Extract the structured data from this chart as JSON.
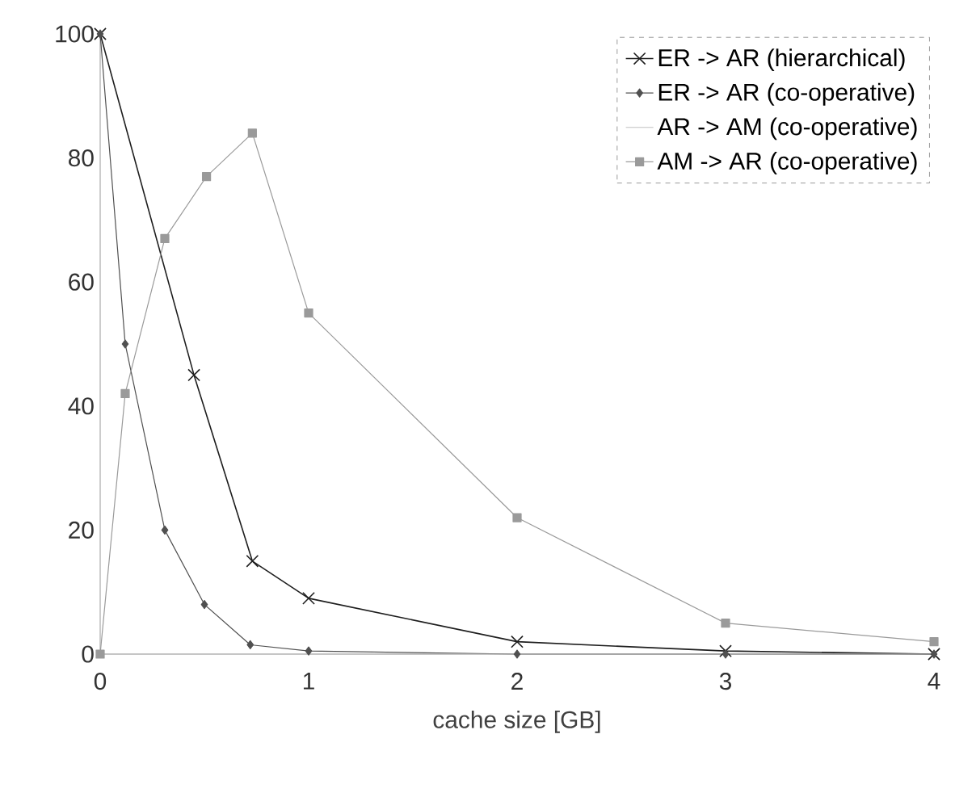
{
  "chart_data": {
    "type": "line",
    "xlabel": "cache size [GB]",
    "xlim": [
      0,
      4
    ],
    "xticks": [
      0,
      1,
      2,
      3,
      4
    ],
    "ylim": [
      0,
      100
    ],
    "yticks": [
      0,
      20,
      40,
      60,
      80,
      100
    ],
    "grid": false,
    "legend": "top right",
    "series": [
      {
        "name": "ER -> AR (hierarchical)",
        "color": "#1e1e1e",
        "marker": "cross",
        "x": [
          0,
          0.45,
          0.73,
          1,
          2,
          3,
          4
        ],
        "values": [
          100,
          45,
          15,
          9,
          2,
          0.5,
          0
        ]
      },
      {
        "name": "ER -> AR (co-operative)",
        "color": "#505050",
        "marker": "diamond",
        "x": [
          0,
          0.12,
          0.31,
          0.5,
          0.72,
          1,
          2,
          3,
          4
        ],
        "values": [
          100,
          50,
          20,
          8,
          1.5,
          0.5,
          0,
          0,
          0
        ]
      },
      {
        "name": "AR -> AM (co-operative)",
        "color": "#c0c0c0",
        "marker": "none",
        "x": [
          0,
          1,
          2,
          3,
          4
        ],
        "values": [
          0,
          0,
          0,
          0,
          0
        ]
      },
      {
        "name": "AM -> AR (co-operative)",
        "color": "#9a9a9a",
        "marker": "square",
        "x": [
          0,
          0.12,
          0.31,
          0.51,
          0.73,
          1,
          2,
          3,
          4
        ],
        "values": [
          0,
          42,
          67,
          77,
          84,
          55,
          22,
          5,
          2
        ]
      }
    ]
  }
}
